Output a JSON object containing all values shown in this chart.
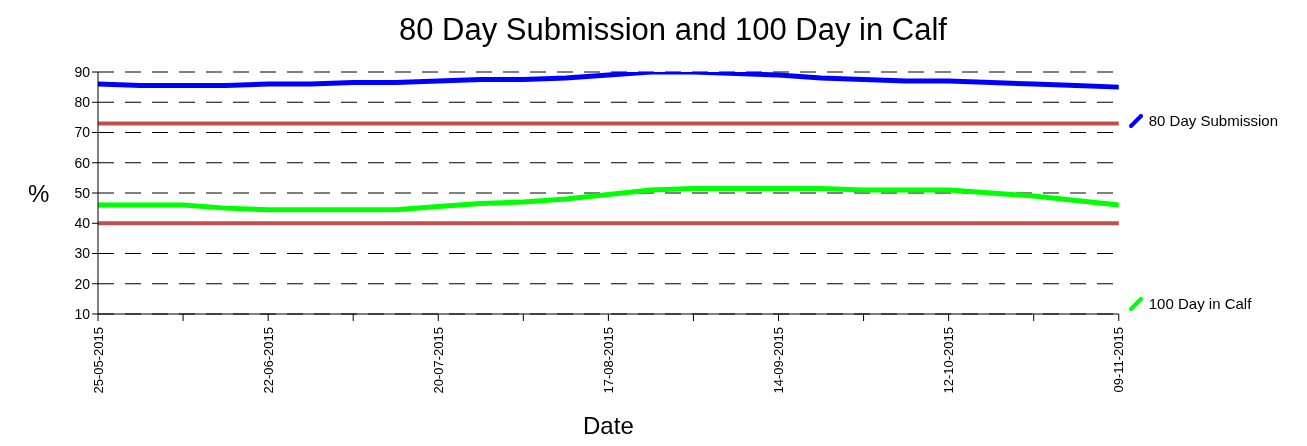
{
  "chart_data": {
    "type": "line",
    "title": "80 Day Submission and 100 Day in Calf",
    "xlabel": "Date",
    "ylabel": "%",
    "x": [
      "2015-05-25",
      "2015-06-01",
      "2015-06-08",
      "2015-06-15",
      "2015-06-22",
      "2015-06-29",
      "2015-07-06",
      "2015-07-13",
      "2015-07-20",
      "2015-07-27",
      "2015-08-03",
      "2015-08-10",
      "2015-08-17",
      "2015-08-24",
      "2015-08-31",
      "2015-09-07",
      "2015-09-14",
      "2015-09-21",
      "2015-09-28",
      "2015-10-05",
      "2015-10-12",
      "2015-10-19",
      "2015-10-26",
      "2015-11-02",
      "2015-11-09"
    ],
    "series": [
      {
        "name": "80 Day Submission",
        "color": "#0000ff",
        "values": [
          86,
          85.5,
          85.5,
          85.5,
          86,
          86,
          86.5,
          86.5,
          87,
          87.5,
          87.5,
          88,
          89,
          90,
          90,
          89.5,
          89,
          88,
          87.5,
          87,
          87,
          86.5,
          86,
          85.5,
          85
        ]
      },
      {
        "name": "100 Day in Calf",
        "color": "#00ff00",
        "values": [
          46,
          46,
          46,
          45,
          44.5,
          44.5,
          44.5,
          44.5,
          45.5,
          46.5,
          47,
          48,
          49.5,
          51,
          51.5,
          51.5,
          51.5,
          51.5,
          51,
          51,
          51,
          50,
          49,
          47.5,
          46
        ]
      }
    ],
    "ref_lines": [
      {
        "axis": "y",
        "value": 73,
        "color": "#c0504d"
      },
      {
        "axis": "y",
        "value": 40,
        "color": "#c0504d"
      }
    ],
    "xlim": [
      "2015-05-25",
      "2015-11-09"
    ],
    "xticks": [
      {
        "value": "2015-05-25",
        "label": "25-05-2015"
      },
      {
        "value": "2015-06-08",
        "label": null
      },
      {
        "value": "2015-06-22",
        "label": "22-06-2015"
      },
      {
        "value": "2015-07-06",
        "label": null
      },
      {
        "value": "2015-07-20",
        "label": "20-07-2015"
      },
      {
        "value": "2015-08-03",
        "label": null
      },
      {
        "value": "2015-08-17",
        "label": "17-08-2015"
      },
      {
        "value": "2015-08-31",
        "label": null
      },
      {
        "value": "2015-09-14",
        "label": "14-09-2015"
      },
      {
        "value": "2015-09-28",
        "label": null
      },
      {
        "value": "2015-10-12",
        "label": "12-10-2015"
      },
      {
        "value": "2015-10-26",
        "label": null
      },
      {
        "value": "2015-11-09",
        "label": "09-11-2015"
      }
    ],
    "ylim": [
      10,
      90
    ],
    "yticks": [
      10,
      20,
      30,
      40,
      50,
      60,
      70,
      80,
      90
    ],
    "grid": "y",
    "legend": "right",
    "marker": "none",
    "line_style": "solid"
  }
}
